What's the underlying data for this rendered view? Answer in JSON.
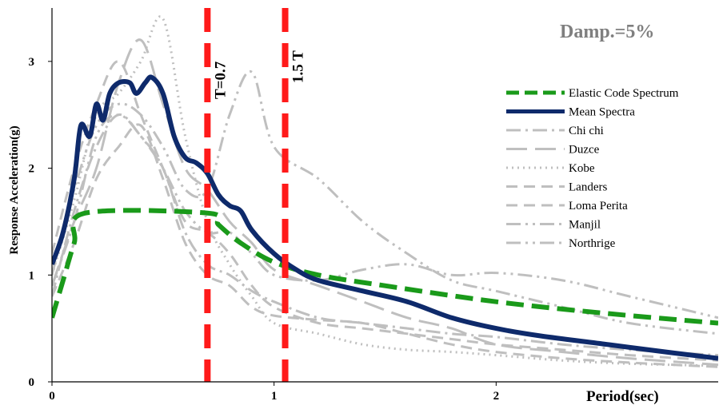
{
  "chart_data": {
    "type": "line",
    "annotation": "Damp.=5%",
    "xlabel": "Period(sec)",
    "ylabel": "Response Acceleration(g)",
    "xlim": [
      0,
      3.0
    ],
    "ylim": [
      0,
      3.5
    ],
    "x_ticks": [
      0,
      1,
      2
    ],
    "y_ticks": [
      0,
      1,
      2,
      3
    ],
    "grid": false,
    "legend_position": "right",
    "vertical_markers": [
      {
        "x": 0.7,
        "label": "T=0.7",
        "color": "#ff1a1a"
      },
      {
        "x": 1.05,
        "label": "1.5 T",
        "color": "#ff1a1a"
      }
    ],
    "series": [
      {
        "name": "Elastic Code Spectrum",
        "color": "#1a9a1a",
        "style": "dash",
        "width": 6,
        "x": [
          0,
          0.05,
          0.1,
          0.15,
          0.7,
          0.75,
          0.85,
          1.0,
          1.2,
          1.5,
          2.0,
          2.5,
          3.0
        ],
        "y": [
          0.6,
          0.95,
          1.3,
          1.58,
          1.58,
          1.47,
          1.3,
          1.12,
          1.0,
          0.9,
          0.75,
          0.64,
          0.55
        ]
      },
      {
        "name": "Mean Spectra",
        "color": "#0e2a6b",
        "style": "solid",
        "width": 6,
        "x": [
          0,
          0.05,
          0.1,
          0.13,
          0.17,
          0.2,
          0.23,
          0.26,
          0.3,
          0.35,
          0.38,
          0.42,
          0.45,
          0.5,
          0.55,
          0.6,
          0.65,
          0.7,
          0.75,
          0.8,
          0.85,
          0.9,
          1.0,
          1.1,
          1.2,
          1.4,
          1.6,
          1.8,
          2.0,
          2.2,
          2.5,
          2.8,
          3.0
        ],
        "y": [
          1.1,
          1.4,
          1.9,
          2.4,
          2.3,
          2.6,
          2.45,
          2.7,
          2.8,
          2.8,
          2.7,
          2.8,
          2.85,
          2.7,
          2.3,
          2.1,
          2.05,
          1.95,
          1.75,
          1.65,
          1.6,
          1.42,
          1.2,
          1.05,
          0.95,
          0.85,
          0.75,
          0.6,
          0.5,
          0.43,
          0.35,
          0.27,
          0.22
        ]
      },
      {
        "name": "Chi chi",
        "color": "#bfbfbf",
        "style": "dashdot",
        "width": 3,
        "x": [
          0,
          0.1,
          0.2,
          0.3,
          0.4,
          0.5,
          0.6,
          0.7,
          0.8,
          0.9,
          1.0,
          1.2,
          1.4,
          1.6,
          1.8,
          2.0,
          2.3,
          2.6,
          3.0
        ],
        "y": [
          0.8,
          1.6,
          2.2,
          2.5,
          2.3,
          2.0,
          1.4,
          1.1,
          1.0,
          0.85,
          0.75,
          0.6,
          0.55,
          0.5,
          0.45,
          0.42,
          0.35,
          0.3,
          0.25
        ]
      },
      {
        "name": "Duzce",
        "color": "#bfbfbf",
        "style": "longdash",
        "width": 3,
        "x": [
          0,
          0.1,
          0.2,
          0.3,
          0.4,
          0.5,
          0.6,
          0.7,
          0.8,
          0.9,
          1.0,
          1.2,
          1.4,
          1.6,
          1.8,
          2.0,
          2.3,
          2.6,
          3.0
        ],
        "y": [
          0.9,
          1.5,
          2.0,
          2.8,
          3.2,
          2.6,
          2.0,
          1.8,
          1.5,
          1.3,
          1.05,
          0.9,
          0.75,
          0.6,
          0.5,
          0.35,
          0.28,
          0.22,
          0.16
        ]
      },
      {
        "name": "Kobe",
        "color": "#bfbfbf",
        "style": "dot",
        "width": 3,
        "x": [
          0,
          0.1,
          0.2,
          0.3,
          0.4,
          0.5,
          0.6,
          0.7,
          0.8,
          0.9,
          1.0,
          1.2,
          1.4,
          1.6,
          1.8,
          2.0,
          2.3,
          2.6,
          3.0
        ],
        "y": [
          1.0,
          1.7,
          2.5,
          2.7,
          3.0,
          3.4,
          2.3,
          1.5,
          1.1,
          0.8,
          0.55,
          0.45,
          0.35,
          0.3,
          0.28,
          0.25,
          0.2,
          0.17,
          0.15
        ]
      },
      {
        "name": "Landers",
        "color": "#bfbfbf",
        "style": "dash",
        "width": 3,
        "x": [
          0,
          0.1,
          0.2,
          0.3,
          0.4,
          0.5,
          0.6,
          0.7,
          0.8,
          0.9,
          1.0,
          1.2,
          1.4,
          1.6,
          1.8,
          2.0,
          2.3,
          2.6,
          3.0
        ],
        "y": [
          0.8,
          1.3,
          1.9,
          2.2,
          2.4,
          1.9,
          1.3,
          1.0,
          0.9,
          0.7,
          0.62,
          0.58,
          0.55,
          0.45,
          0.35,
          0.28,
          0.22,
          0.18,
          0.14
        ]
      },
      {
        "name": "Loma Perita",
        "color": "#bfbfbf",
        "style": "dash",
        "width": 3,
        "x": [
          0,
          0.1,
          0.2,
          0.3,
          0.4,
          0.5,
          0.6,
          0.7,
          0.8,
          0.9,
          1.0,
          1.2,
          1.4,
          1.6,
          1.8,
          2.0,
          2.3,
          2.6,
          3.0
        ],
        "y": [
          1.2,
          2.0,
          2.6,
          3.0,
          2.5,
          2.0,
          1.5,
          1.4,
          1.2,
          0.9,
          0.7,
          0.55,
          0.5,
          0.45,
          0.4,
          0.35,
          0.3,
          0.25,
          0.2
        ]
      },
      {
        "name": "Manjil",
        "color": "#bfbfbf",
        "style": "dashdotdot",
        "width": 3,
        "x": [
          0,
          0.1,
          0.2,
          0.3,
          0.4,
          0.5,
          0.6,
          0.7,
          0.8,
          0.9,
          1.0,
          1.2,
          1.4,
          1.6,
          1.8,
          2.0,
          2.3,
          2.6,
          3.0
        ],
        "y": [
          0.9,
          1.5,
          2.3,
          2.5,
          2.3,
          2.0,
          1.6,
          1.4,
          1.4,
          1.2,
          1.0,
          0.95,
          1.05,
          1.1,
          1.0,
          1.02,
          0.95,
          0.8,
          0.6
        ]
      },
      {
        "name": "Northrige",
        "color": "#bfbfbf",
        "style": "dashdotdot",
        "width": 3,
        "x": [
          0,
          0.1,
          0.2,
          0.3,
          0.4,
          0.5,
          0.6,
          0.7,
          0.8,
          0.9,
          1.0,
          1.2,
          1.4,
          1.6,
          1.8,
          2.0,
          2.3,
          2.6,
          3.0
        ],
        "y": [
          1.0,
          1.8,
          2.4,
          2.6,
          2.5,
          2.2,
          1.8,
          1.8,
          2.5,
          2.9,
          2.2,
          1.9,
          1.5,
          1.2,
          0.95,
          0.85,
          0.7,
          0.55,
          0.45
        ]
      }
    ]
  }
}
